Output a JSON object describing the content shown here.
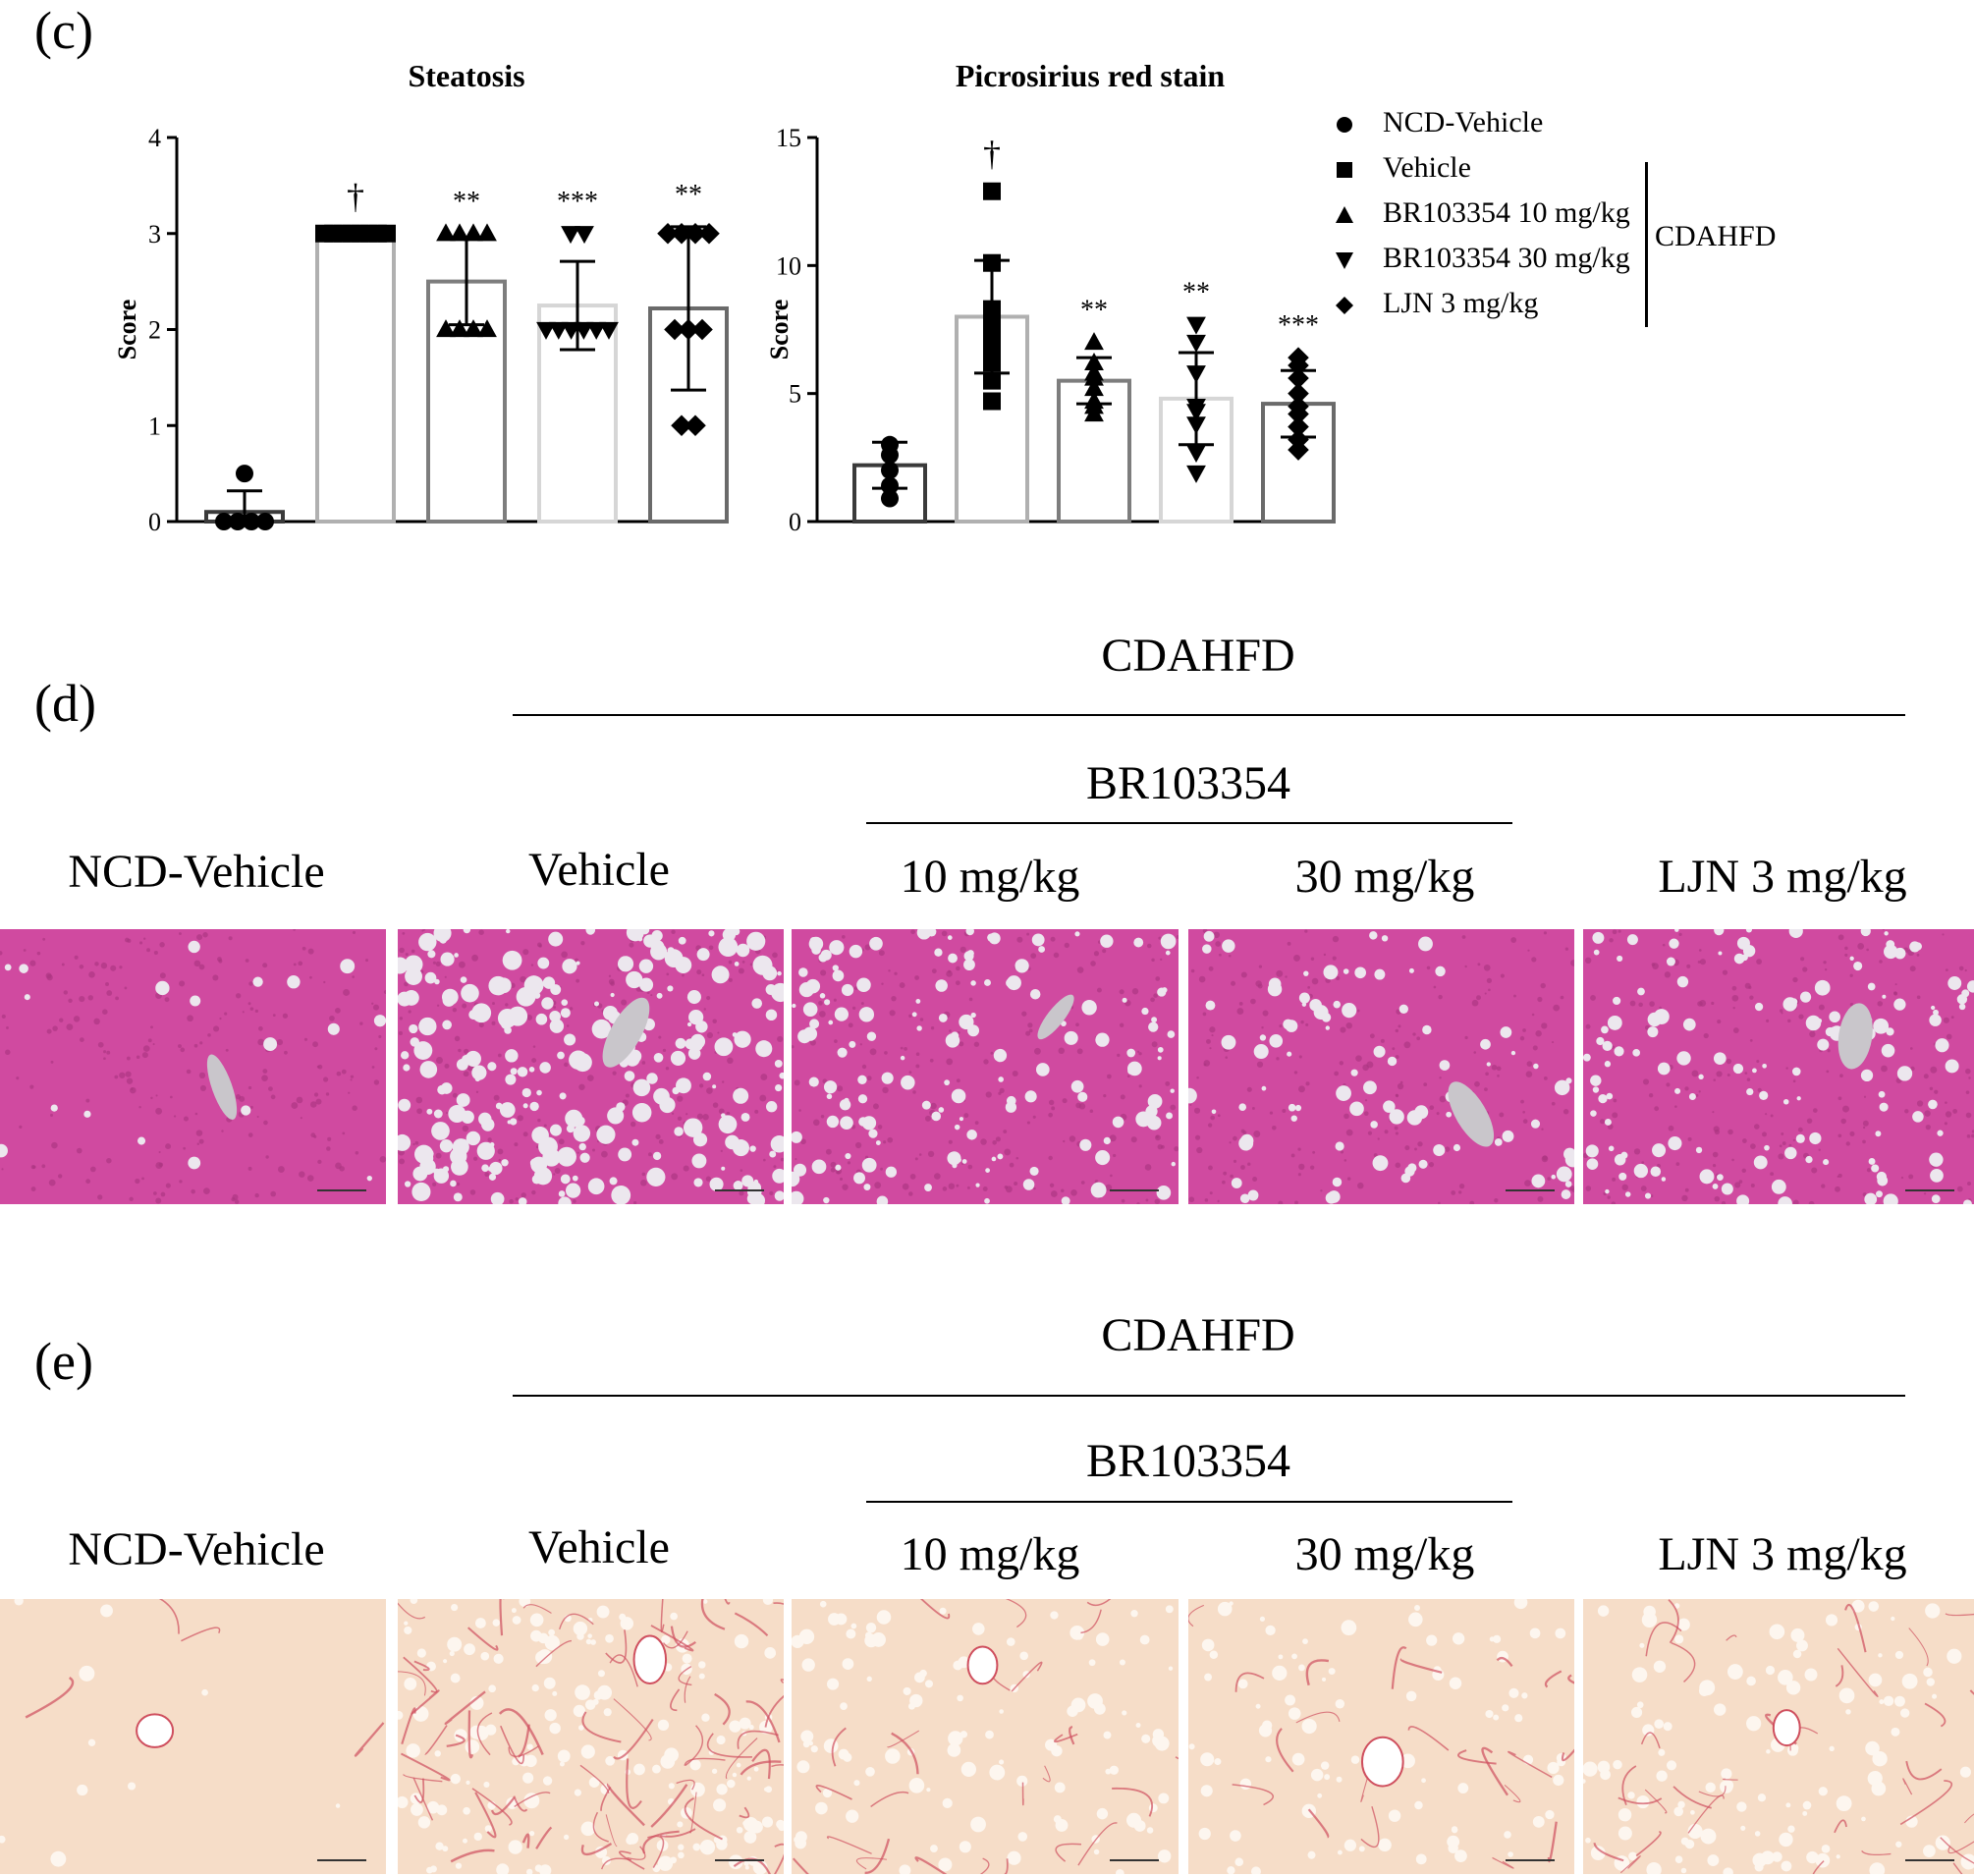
{
  "panel_labels": {
    "c": "(c)",
    "d": "(d)",
    "e": "(e)"
  },
  "legend": {
    "items": [
      {
        "marker": "circle",
        "label": "NCD-Vehicle"
      },
      {
        "marker": "square",
        "label": "Vehicle"
      },
      {
        "marker": "triangle-up",
        "label": "BR103354 10 mg/kg"
      },
      {
        "marker": "triangle-down",
        "label": "BR103354 30 mg/kg"
      },
      {
        "marker": "diamond",
        "label": "LJN 3 mg/kg"
      }
    ],
    "group_label": "CDAHFD"
  },
  "chart_data": [
    {
      "type": "bar",
      "title": "Steatosis",
      "ylabel": "Score",
      "ylim": [
        0,
        4
      ],
      "yticks": [
        "0",
        "1",
        "2",
        "3",
        "4"
      ],
      "categories": [
        "NCD-Vehicle",
        "Vehicle",
        "BR103354 10 mg/kg",
        "BR103354 30 mg/kg",
        "LJN 3 mg/kg"
      ],
      "values": [
        0.1,
        3.0,
        2.5,
        2.25,
        2.22
      ],
      "error": [
        0.22,
        0.0,
        0.45,
        0.46,
        0.85
      ],
      "annotations": [
        "",
        "†",
        "**",
        "***",
        "**"
      ],
      "bar_colors": [
        "#3a3a3a",
        "#b0b0b0",
        "#7d7d7d",
        "#d6d6d6",
        "#6a6a6a"
      ],
      "points": [
        [
          0,
          0,
          0,
          0,
          0.5
        ],
        [
          3,
          3,
          3,
          3,
          3,
          3,
          3,
          3
        ],
        [
          3,
          3,
          3,
          3,
          2,
          2,
          2,
          2
        ],
        [
          3,
          3,
          2,
          2,
          2,
          2,
          2,
          2
        ],
        [
          3,
          3,
          3,
          3,
          2,
          2,
          2,
          1,
          1
        ]
      ]
    },
    {
      "type": "bar",
      "title": "Picrosirius red stain",
      "ylabel": "Score",
      "ylim": [
        0,
        15
      ],
      "yticks": [
        "0",
        "5",
        "10",
        "15"
      ],
      "categories": [
        "NCD-Vehicle",
        "Vehicle",
        "BR103354 10 mg/kg",
        "BR103354 30 mg/kg",
        "LJN 3 mg/kg"
      ],
      "values": [
        2.2,
        8.0,
        5.5,
        4.8,
        4.6
      ],
      "error": [
        0.9,
        2.2,
        0.9,
        1.8,
        1.3
      ],
      "annotations": [
        "",
        "†",
        "**",
        "**",
        "***"
      ],
      "bar_colors": [
        "#3a3a3a",
        "#b0b0b0",
        "#7d7d7d",
        "#d6d6d6",
        "#6a6a6a"
      ],
      "points": [
        [
          3.0,
          2.6,
          2.0,
          1.4,
          0.9
        ],
        [
          12.9,
          10.1,
          8.3,
          8.1,
          7.8,
          7.2,
          6.8,
          6.2,
          5.5,
          4.7
        ],
        [
          7.0,
          6.2,
          5.8,
          5.6,
          5.2,
          4.7,
          4.5,
          4.2
        ],
        [
          7.7,
          7.0,
          5.8,
          4.5,
          4.3,
          3.8,
          2.7,
          1.9
        ],
        [
          6.4,
          6.1,
          5.6,
          5.0,
          4.5,
          4.2,
          3.7,
          3.2,
          2.8
        ]
      ]
    }
  ],
  "he_panel": {
    "group_label": "CDAHFD",
    "sub_group_label": "BR103354",
    "column_labels": [
      "NCD-Vehicle",
      "Vehicle",
      "10 mg/kg",
      "30 mg/kg",
      "LJN 3 mg/kg"
    ],
    "colors": {
      "tissue": "#d04aa0",
      "tissue_dark": "#a8347e",
      "lipid": "#ece7ee",
      "vessel": "#c9c6cb"
    }
  },
  "psr_panel": {
    "group_label": "CDAHFD",
    "sub_group_label": "BR103354",
    "column_labels": [
      "NCD-Vehicle",
      "Vehicle",
      "10 mg/kg",
      "30 mg/kg",
      "LJN 3 mg/kg"
    ],
    "colors": {
      "tissue": "#f6ddc8",
      "fiber": "#cf4f5e",
      "lipid": "#fdf6ef"
    }
  }
}
